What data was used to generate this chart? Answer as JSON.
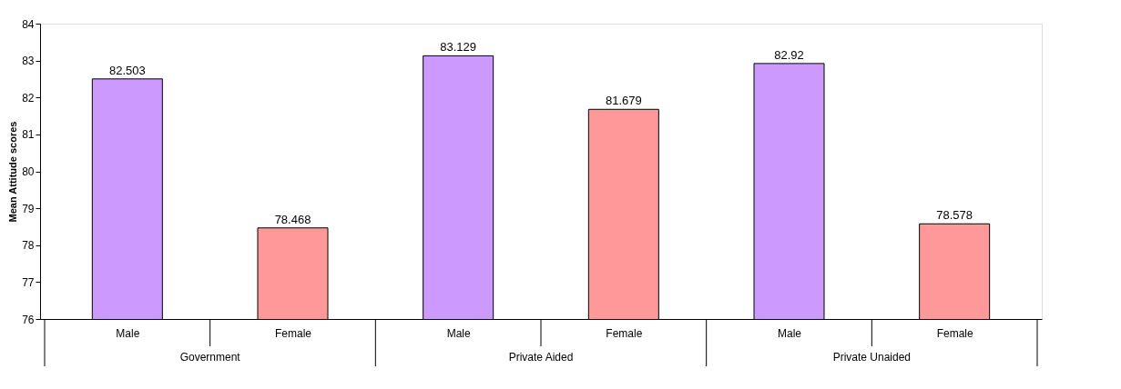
{
  "chart_data": {
    "type": "bar",
    "ylabel": "Mean Attitude scores",
    "categories": [
      "Male",
      "Female",
      "Male",
      "Female",
      "Male",
      "Female"
    ],
    "values": [
      82.503,
      78.468,
      83.129,
      81.679,
      82.92,
      78.578
    ],
    "colors": [
      "#cc99ff",
      "#ff9999",
      "#cc99ff",
      "#ff9999",
      "#cc99ff",
      "#ff9999"
    ],
    "ylim": [
      76,
      84
    ],
    "yticks": [
      76,
      77,
      78,
      79,
      80,
      81,
      82,
      83,
      84
    ],
    "data_labels": true,
    "grid": false,
    "annotations": [
      "Government",
      "Private Aided",
      "Private Unaided"
    ]
  }
}
